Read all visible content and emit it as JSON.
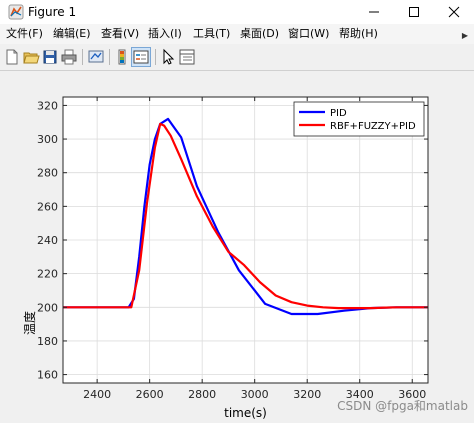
{
  "window": {
    "title": "Figure 1"
  },
  "menu": [
    {
      "label": "文件(F)"
    },
    {
      "label": "编辑(E)"
    },
    {
      "label": "查看(V)"
    },
    {
      "label": "插入(I)"
    },
    {
      "label": "工具(T)"
    },
    {
      "label": "桌面(D)"
    },
    {
      "label": "窗口(W)"
    },
    {
      "label": "帮助(H)"
    }
  ],
  "toolbar": {
    "icons": [
      "new-figure-icon",
      "open-file-icon",
      "save-icon",
      "print-icon",
      "link-plot-icon",
      "insert-colorbar-icon",
      "insert-legend-icon",
      "edit-plot-icon",
      "property-inspector-icon"
    ]
  },
  "watermark": "CSDN @fpga和matlab",
  "chart_data": {
    "type": "line",
    "xlabel": "time(s)",
    "ylabel": "温度",
    "xlim": [
      2270,
      3660
    ],
    "ylim": [
      155,
      325
    ],
    "xticks": [
      2400,
      2600,
      2800,
      3000,
      3200,
      3400,
      3600
    ],
    "yticks": [
      160,
      180,
      200,
      220,
      240,
      260,
      280,
      300,
      320
    ],
    "grid": true,
    "legend_position": "top-right",
    "series": [
      {
        "name": "PID",
        "color": "#0000ff",
        "x": [
          2270,
          2520,
          2540,
          2560,
          2580,
          2600,
          2620,
          2640,
          2670,
          2720,
          2780,
          2860,
          2940,
          3040,
          3140,
          3240,
          3340,
          3440,
          3540,
          3660
        ],
        "y": [
          200,
          200,
          205,
          230,
          260,
          285,
          300,
          309,
          312,
          301,
          272,
          245,
          222,
          202,
          196,
          196,
          198,
          199.5,
          200,
          200
        ]
      },
      {
        "name": "RBF+FUZZY+PID",
        "color": "#ff0000",
        "x": [
          2270,
          2530,
          2560,
          2590,
          2620,
          2640,
          2655,
          2680,
          2720,
          2780,
          2840,
          2900,
          2960,
          3020,
          3080,
          3140,
          3200,
          3260,
          3320,
          3380,
          3440,
          3540,
          3660
        ],
        "y": [
          200,
          200,
          222,
          262,
          295,
          309,
          308,
          302,
          288,
          266,
          248,
          233,
          225,
          215,
          207,
          203,
          201,
          200,
          199.5,
          199.5,
          199.5,
          200,
          200
        ]
      }
    ]
  },
  "colors": {
    "figure_bg": "#f0f0f0",
    "axes_bg": "#ffffff",
    "grid": "#dcdcdc",
    "pid": "#0000ff",
    "rbf": "#ff0000"
  }
}
